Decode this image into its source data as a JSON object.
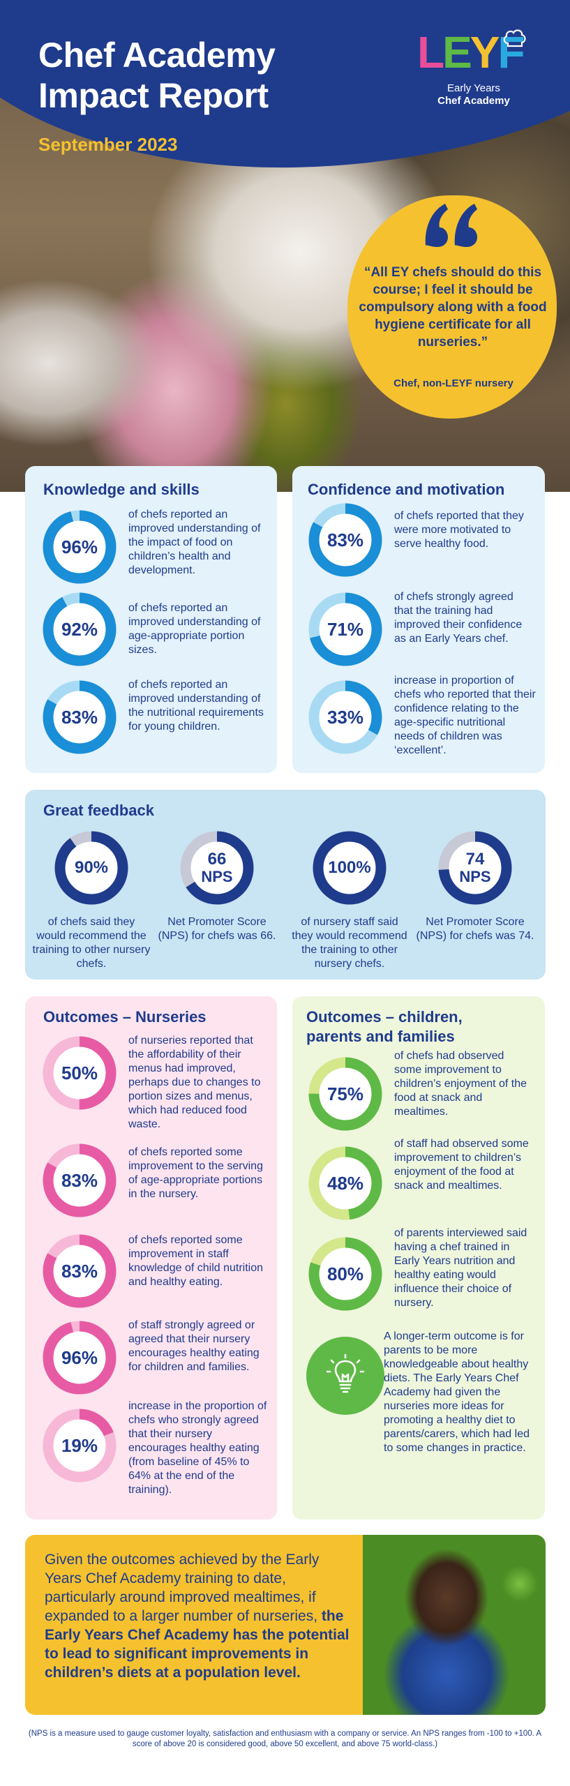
{
  "header": {
    "title_line1": "Chef Academy",
    "title_line2": "Impact Report",
    "date": "September 2023",
    "logo_word": "LEYF",
    "logo_sub1": "Early Years",
    "logo_sub2": "Chef Academy"
  },
  "quote": {
    "text": "“All EY chefs should do this course; I feel it should be compulsory along with a food hygiene certificate for all nurseries.”",
    "attribution": "Chef, non-LEYF nursery"
  },
  "colors": {
    "navy": "#1f3b8c",
    "yellow": "#f5c12e",
    "light_blue_card": "#e3f2fb",
    "feedback_card": "#c9e4f3",
    "pink_card": "#fde4ef",
    "green_card": "#eef6dc",
    "ring_blue": "#1a8ed6",
    "ring_blue_light": "#a8dbf3",
    "ring_navy": "#1f3b8c",
    "ring_grey": "#c7c9d6",
    "ring_pink": "#e75ba4",
    "ring_pink_light": "#f7b7d6",
    "ring_green": "#5fb946",
    "ring_green_light": "#d4e78a"
  },
  "knowledge": {
    "title": "Knowledge and skills",
    "stats": [
      {
        "value": "96%",
        "percent": 96,
        "text": "of chefs reported an improved understanding of the impact of food on children’s health and development."
      },
      {
        "value": "92%",
        "percent": 92,
        "text": "of chefs reported an improved understanding of age-appropriate portion sizes."
      },
      {
        "value": "83%",
        "percent": 83,
        "text": "of chefs reported an improved understanding of the nutritional requirements for young children."
      }
    ]
  },
  "confidence": {
    "title": "Confidence and motivation",
    "stats": [
      {
        "value": "83%",
        "percent": 83,
        "text": "of chefs reported that they were more motivated to serve healthy food."
      },
      {
        "value": "71%",
        "percent": 71,
        "text": "of chefs strongly agreed that the training had improved their confidence as an Early Years chef."
      },
      {
        "value": "33%",
        "percent": 33,
        "text": "increase in proportion of chefs who reported that their confidence relating to the age-specific nutritional needs of children was ‘excellent’."
      }
    ]
  },
  "feedback": {
    "title": "Great feedback",
    "items": [
      {
        "value": "90%",
        "unit": "",
        "percent": 90,
        "text": "of chefs said they would recommend the training to other nursery chefs."
      },
      {
        "value": "66",
        "unit": "NPS",
        "percent": 66,
        "text": "Net Promoter Score (NPS) for chefs was 66."
      },
      {
        "value": "100%",
        "unit": "",
        "percent": 100,
        "text": "of nursery staff said they would recommend the training to other nursery chefs."
      },
      {
        "value": "74",
        "unit": "NPS",
        "percent": 74,
        "text": "Net Promoter Score (NPS) for chefs was 74."
      }
    ]
  },
  "nurseries": {
    "title": "Outcomes – Nurseries",
    "stats": [
      {
        "value": "50%",
        "percent": 50,
        "text": "of nurseries reported that the affordability of their menus had improved, perhaps due to changes to portion sizes and menus, which had reduced food waste."
      },
      {
        "value": "83%",
        "percent": 83,
        "text": "of chefs reported some improvement to the serving of age-appropriate portions in the nursery."
      },
      {
        "value": "83%",
        "percent": 83,
        "text": "of chefs reported some improvement in staff knowledge of child nutrition and healthy eating."
      },
      {
        "value": "96%",
        "percent": 96,
        "text": "of staff strongly agreed or agreed that their nursery encourages healthy eating for children and families."
      },
      {
        "value": "19%",
        "percent": 19,
        "text": "increase in the proportion of chefs who strongly agreed that their nursery encourages healthy eating (from baseline of 45% to 64% at the end of the training)."
      }
    ]
  },
  "families": {
    "title_line1": "Outcomes – children,",
    "title_line2": "parents and families",
    "stats": [
      {
        "value": "75%",
        "percent": 75,
        "text": "of chefs had observed some improvement to children’s enjoyment of the food at snack and mealtimes."
      },
      {
        "value": "48%",
        "percent": 48,
        "text": "of staff had observed some improvement to children’s enjoyment of the food at snack and mealtimes."
      },
      {
        "value": "80%",
        "percent": 80,
        "text": "of parents interviewed said having a chef trained in Early Years nutrition and healthy eating would influence their choice of nursery."
      }
    ],
    "bulb_text": "A longer-term outcome is for parents to be more knowledgeable about healthy diets. The Early Years Chef Academy had given the nurseries more ideas for promoting a healthy diet to parents/carers, which had led to some changes in practice.",
    "bulb_icon": "lightbulb-icon"
  },
  "conclusion": {
    "intro": "Given the outcomes achieved by the Early Years Chef Academy training to date, particularly around improved mealtimes, if expanded to a larger number of nurseries, ",
    "bold": "the Early Years Chef Academy has the potential to lead to significant improvements in children’s diets at a population level."
  },
  "footnote": "(NPS is a measure used to gauge customer loyalty, satisfaction and enthusiasm with a company or service. An NPS ranges from -100 to +100. A score of above 20 is considered good, above 50 excellent, and above 75 world-class.)"
}
